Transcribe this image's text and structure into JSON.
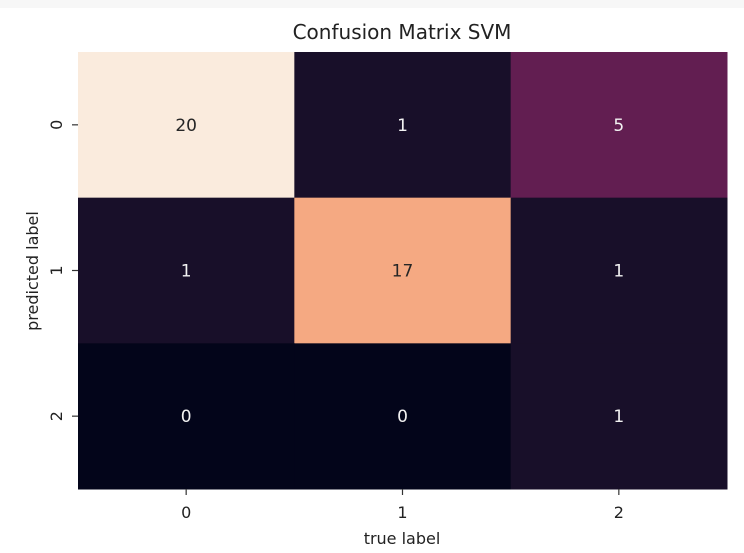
{
  "chart_data": {
    "type": "heatmap",
    "title": "Confusion Matrix SVM",
    "xlabel": "true label",
    "ylabel": "predicted label",
    "x_categories": [
      "0",
      "1",
      "2"
    ],
    "y_categories": [
      "0",
      "1",
      "2"
    ],
    "values": [
      [
        20,
        1,
        5
      ],
      [
        1,
        17,
        1
      ],
      [
        0,
        0,
        1
      ]
    ],
    "colormap": "rocket",
    "vmin": 0,
    "vmax": 20,
    "grid": false,
    "colorbar": false
  }
}
